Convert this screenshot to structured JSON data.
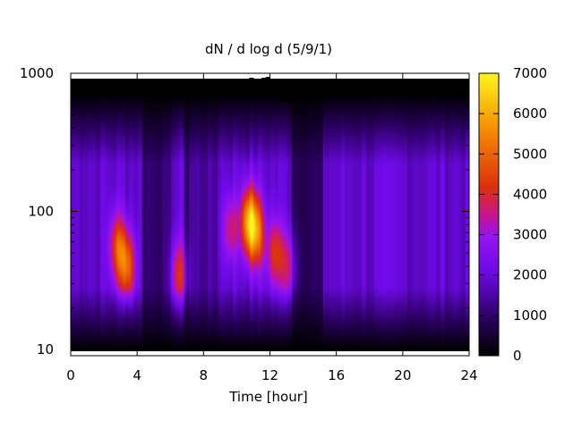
{
  "chart_data": {
    "type": "heatmap",
    "title": "dN / d log d (5/9/1)",
    "xlabel": "Time [hour]",
    "ylabel": "",
    "xlim": [
      0,
      24
    ],
    "ylim": [
      9,
      1000
    ],
    "y_scale": "log",
    "x_ticks": [
      "0",
      "4",
      "8",
      "12",
      "16",
      "20",
      "24"
    ],
    "y_ticks": [
      "10",
      "100",
      "1000"
    ],
    "colorbar": {
      "ticks": [
        "0",
        "1000",
        "2000",
        "3000",
        "4000",
        "5000",
        "6000",
        "7000"
      ],
      "range": [
        0,
        7000
      ],
      "palette": [
        "#000000",
        "#5a00b4",
        "#8c1ef0",
        "#c81e8c",
        "#dc3c00",
        "#f08c00",
        "#fff014"
      ]
    },
    "hotspots": [
      {
        "t": 2.8,
        "d": 55,
        "value": 4600
      },
      {
        "t": 3.4,
        "d": 40,
        "value": 4900
      },
      {
        "t": 6.5,
        "d": 35,
        "value": 4100
      },
      {
        "t": 9.6,
        "d": 75,
        "value": 3700
      },
      {
        "t": 10.7,
        "d": 85,
        "value": 5900
      },
      {
        "t": 11.2,
        "d": 70,
        "value": 4800
      },
      {
        "t": 12.3,
        "d": 50,
        "value": 4200
      },
      {
        "t": 13.1,
        "d": 40,
        "value": 3600
      }
    ]
  }
}
